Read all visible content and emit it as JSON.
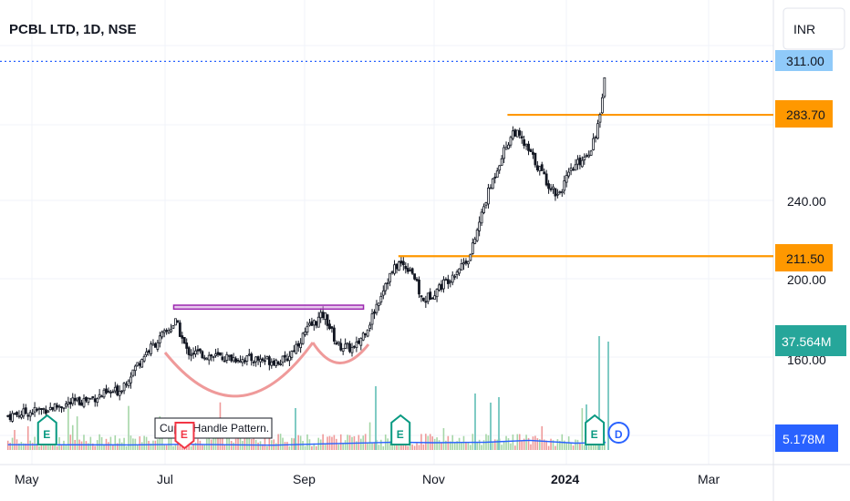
{
  "chart_data": {
    "type": "candlestick",
    "title": "PCBL LTD, 1D, NSE",
    "currency": "INR",
    "y_ticks": [
      "240.00",
      "200.00",
      "160.00"
    ],
    "x_ticks": [
      {
        "label": "May",
        "date": "2023-05-01",
        "bold": false
      },
      {
        "label": "Jul",
        "date": "2023-07-01",
        "bold": false
      },
      {
        "label": "Sep",
        "date": "2023-09-01",
        "bold": false
      },
      {
        "label": "Nov",
        "date": "2023-11-01",
        "bold": false
      },
      {
        "label": "2024",
        "date": "2024-01-01",
        "bold": true
      },
      {
        "label": "Mar",
        "date": "2024-03-01",
        "bold": false
      }
    ],
    "price_badges": [
      {
        "label": "311.00",
        "value": 311.0,
        "kind": "last-price"
      },
      {
        "label": "283.70",
        "value": 283.7,
        "kind": "level"
      },
      {
        "label": "211.50",
        "value": 211.5,
        "kind": "level"
      },
      {
        "label": "37.564M",
        "kind": "volume"
      },
      {
        "label": "5.178M",
        "kind": "volume-ma"
      }
    ],
    "levels": [
      {
        "value": 283.7,
        "from": "2023-12-05",
        "color": "#ff9800"
      },
      {
        "value": 211.5,
        "from": "2023-10-16",
        "color": "#ff9800"
      }
    ],
    "resistance_band": {
      "low": 184.5,
      "high": 186.5,
      "from": "2023-07-05",
      "to": "2023-09-30",
      "color": "#9c27b0"
    },
    "annotation": "Cup & Handle Pattern.",
    "events": [
      {
        "label": "E",
        "date": "2023-05-08",
        "color": "#089981"
      },
      {
        "label": "E",
        "date": "2023-07-10",
        "color": "#f23645"
      },
      {
        "label": "E",
        "date": "2023-10-17",
        "color": "#089981"
      },
      {
        "label": "E",
        "date": "2024-01-14",
        "color": "#089981"
      },
      {
        "label": "D",
        "date": "2024-01-25",
        "color": "#2962ff"
      }
    ],
    "series_close": [
      {
        "date": "2023-04-20",
        "close": 130
      },
      {
        "date": "2023-05-05",
        "close": 133
      },
      {
        "date": "2023-05-25",
        "close": 138
      },
      {
        "date": "2023-06-10",
        "close": 143
      },
      {
        "date": "2023-06-22",
        "close": 162
      },
      {
        "date": "2023-07-01",
        "close": 172
      },
      {
        "date": "2023-07-06",
        "close": 178
      },
      {
        "date": "2023-07-11",
        "close": 163
      },
      {
        "date": "2023-07-25",
        "close": 160
      },
      {
        "date": "2023-08-10",
        "close": 159
      },
      {
        "date": "2023-08-25",
        "close": 158
      },
      {
        "date": "2023-09-05",
        "close": 175
      },
      {
        "date": "2023-09-12",
        "close": 182
      },
      {
        "date": "2023-09-18",
        "close": 166
      },
      {
        "date": "2023-09-26",
        "close": 164
      },
      {
        "date": "2023-10-03",
        "close": 178
      },
      {
        "date": "2023-10-10",
        "close": 198
      },
      {
        "date": "2023-10-16",
        "close": 208
      },
      {
        "date": "2023-10-22",
        "close": 205
      },
      {
        "date": "2023-10-27",
        "close": 188
      },
      {
        "date": "2023-11-08",
        "close": 200
      },
      {
        "date": "2023-11-18",
        "close": 212
      },
      {
        "date": "2023-11-25",
        "close": 240
      },
      {
        "date": "2023-12-02",
        "close": 262
      },
      {
        "date": "2023-12-08",
        "close": 276
      },
      {
        "date": "2023-12-16",
        "close": 263
      },
      {
        "date": "2023-12-24",
        "close": 248
      },
      {
        "date": "2023-12-28",
        "close": 243
      },
      {
        "date": "2024-01-04",
        "close": 256
      },
      {
        "date": "2024-01-12",
        "close": 266
      },
      {
        "date": "2024-01-17",
        "close": 284
      },
      {
        "date": "2024-01-19",
        "close": 311
      }
    ],
    "volume_ma": [
      {
        "date": "2023-04-20",
        "value": 3.6
      },
      {
        "date": "2023-06-15",
        "value": 3.5
      },
      {
        "date": "2023-07-10",
        "value": 3.9
      },
      {
        "date": "2023-08-20",
        "value": 3.3
      },
      {
        "date": "2023-09-15",
        "value": 4.3
      },
      {
        "date": "2023-10-15",
        "value": 5.4
      },
      {
        "date": "2023-11-01",
        "value": 5.0
      },
      {
        "date": "2023-11-25",
        "value": 5.3
      },
      {
        "date": "2023-12-15",
        "value": 6.6
      },
      {
        "date": "2024-01-05",
        "value": 4.7
      },
      {
        "date": "2024-01-19",
        "value": 5.2
      }
    ]
  }
}
